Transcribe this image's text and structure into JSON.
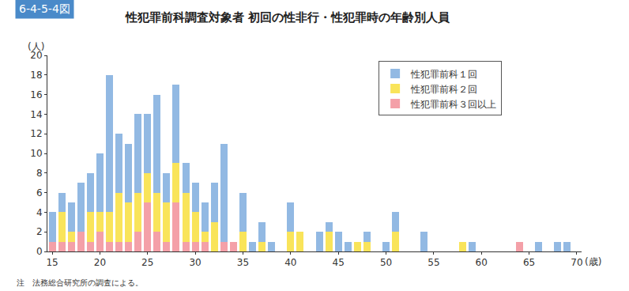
{
  "chart_data": {
    "type": "bar",
    "figure_number": "6-4-5-4図",
    "title": "性犯罪前科調査対象者 初回の性非行・性犯罪時の年齢別人員",
    "xlabel": "(歳)",
    "ylabel": "(人)",
    "note": "注　法務総合研究所の調査による。",
    "stacked": true,
    "grid": false,
    "legend": "upper right",
    "x": [
      15,
      16,
      17,
      18,
      19,
      20,
      21,
      22,
      23,
      24,
      25,
      26,
      27,
      28,
      29,
      30,
      31,
      32,
      33,
      34,
      35,
      36,
      37,
      38,
      39,
      40,
      41,
      42,
      43,
      44,
      45,
      46,
      47,
      48,
      49,
      50,
      51,
      52,
      53,
      54,
      55,
      56,
      57,
      58,
      59,
      60,
      61,
      62,
      63,
      64,
      65,
      66,
      67,
      68,
      69
    ],
    "series": [
      {
        "name": "性犯罪前科１回",
        "color": "#92b9e3",
        "values": [
          3,
          2,
          3,
          5,
          4,
          6,
          14,
          6,
          6,
          8,
          6,
          10,
          3,
          8,
          3,
          3,
          3,
          4,
          10,
          0,
          4,
          1,
          2,
          1,
          0,
          3,
          0,
          0,
          2,
          1,
          2,
          1,
          0,
          1,
          0,
          1,
          2,
          0,
          0,
          2,
          0,
          0,
          0,
          0,
          1,
          0,
          0,
          0,
          0,
          0,
          0,
          1,
          0,
          1,
          1
        ]
      },
      {
        "name": "性犯罪前科２回",
        "color": "#f9e45a",
        "values": [
          0,
          3,
          1,
          0,
          3,
          2,
          3,
          5,
          4,
          4,
          3,
          4,
          4,
          4,
          5,
          3,
          1,
          3,
          0,
          0,
          2,
          0,
          1,
          0,
          0,
          2,
          2,
          0,
          0,
          2,
          0,
          0,
          1,
          1,
          0,
          0,
          2,
          0,
          0,
          0,
          0,
          0,
          0,
          1,
          0,
          0,
          0,
          0,
          0,
          0,
          0,
          0,
          0,
          0,
          0
        ]
      },
      {
        "name": "性犯罪前科３回以上",
        "color": "#f4a0a8",
        "values": [
          1,
          1,
          1,
          2,
          1,
          2,
          1,
          1,
          1,
          2,
          5,
          2,
          1,
          5,
          1,
          1,
          1,
          0,
          1,
          1,
          0,
          0,
          0,
          0,
          0,
          0,
          0,
          0,
          0,
          0,
          0,
          0,
          0,
          0,
          0,
          0,
          0,
          0,
          0,
          0,
          0,
          0,
          0,
          0,
          0,
          0,
          0,
          0,
          0,
          1,
          0,
          0,
          0,
          0,
          0
        ]
      }
    ],
    "xlim": [
      14.5,
      70.5
    ],
    "xticks": [
      15,
      20,
      25,
      30,
      35,
      40,
      45,
      50,
      55,
      60,
      65,
      70
    ],
    "ylim": [
      0,
      20
    ],
    "yticks": [
      0,
      2,
      4,
      6,
      8,
      10,
      12,
      14,
      16,
      18,
      20
    ]
  }
}
